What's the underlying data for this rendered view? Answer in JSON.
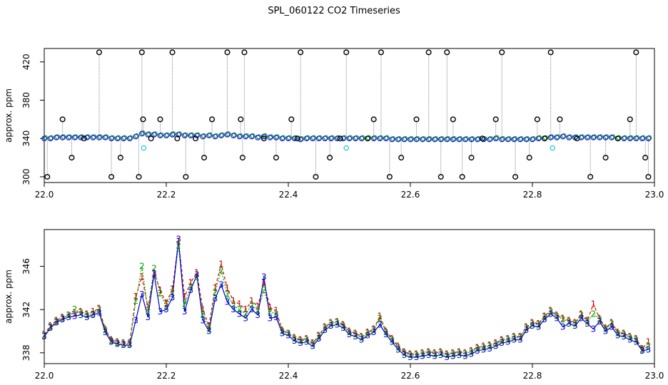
{
  "title": "SPL_060122  CO2 Timeseries",
  "chart_data": [
    {
      "type": "scatter",
      "ylabel": "approx. ppm",
      "xlim": [
        22.0,
        23.0
      ],
      "ylim": [
        294,
        434
      ],
      "xticks": [
        "22.0",
        "22.2",
        "22.4",
        "22.6",
        "22.8",
        "23.0"
      ],
      "yticks": [
        "300",
        "340",
        "380",
        "420"
      ],
      "main_series": {
        "x": [
          22.0,
          22.01,
          22.02,
          22.03,
          22.04,
          22.05,
          22.06,
          22.07,
          22.08,
          22.09,
          22.1,
          22.11,
          22.12,
          22.13,
          22.14,
          22.15,
          22.16,
          22.17,
          22.18,
          22.19,
          22.2,
          22.21,
          22.22,
          22.23,
          22.24,
          22.25,
          22.26,
          22.27,
          22.28,
          22.29,
          22.3,
          22.31,
          22.32,
          22.33,
          22.34,
          22.35,
          22.36,
          22.37,
          22.38,
          22.39,
          22.4,
          22.41,
          22.42,
          22.43,
          22.44,
          22.45,
          22.46,
          22.47,
          22.48,
          22.49,
          22.5,
          22.51,
          22.52,
          22.53,
          22.54,
          22.55,
          22.56,
          22.57,
          22.58,
          22.59,
          22.6,
          22.61,
          22.62,
          22.63,
          22.64,
          22.65,
          22.66,
          22.67,
          22.68,
          22.69,
          22.7,
          22.71,
          22.72,
          22.73,
          22.74,
          22.75,
          22.76,
          22.77,
          22.78,
          22.79,
          22.8,
          22.81,
          22.82,
          22.83,
          22.84,
          22.85,
          22.86,
          22.87,
          22.88,
          22.89,
          22.9,
          22.91,
          22.92,
          22.93,
          22.94,
          22.95,
          22.96,
          22.97,
          22.98,
          22.99
        ],
        "y": [
          340,
          340,
          341,
          341,
          341,
          341,
          341,
          341,
          341,
          341,
          341,
          340,
          340,
          340,
          340,
          342,
          345,
          344,
          344,
          343,
          343,
          344,
          344,
          343,
          343,
          343,
          342,
          343,
          342,
          343,
          344,
          343,
          342,
          342,
          342,
          341,
          342,
          341,
          341,
          340,
          340,
          340,
          339,
          340,
          340,
          340,
          340,
          340,
          340,
          340,
          340,
          340,
          340,
          340,
          340,
          340,
          340,
          339,
          339,
          339,
          339,
          339,
          339,
          339,
          339,
          339,
          339,
          339,
          339,
          339,
          339,
          339,
          339,
          339,
          340,
          339,
          339,
          339,
          339,
          339,
          339,
          340,
          340,
          341,
          341,
          342,
          341,
          341,
          341,
          341,
          341,
          341,
          341,
          341,
          340,
          340,
          340,
          340,
          340,
          340
        ]
      },
      "spikes": {
        "x": [
          22.005,
          22.03,
          22.045,
          22.065,
          22.09,
          22.11,
          22.125,
          22.155,
          22.16,
          22.162,
          22.175,
          22.19,
          22.21,
          22.218,
          22.232,
          22.248,
          22.262,
          22.275,
          22.3,
          22.322,
          22.325,
          22.328,
          22.36,
          22.38,
          22.405,
          22.415,
          22.42,
          22.445,
          22.468,
          22.485,
          22.495,
          22.53,
          22.54,
          22.552,
          22.566,
          22.585,
          22.61,
          22.63,
          22.65,
          22.66,
          22.67,
          22.685,
          22.7,
          22.718,
          22.74,
          22.75,
          22.772,
          22.795,
          22.808,
          22.82,
          22.83,
          22.845,
          22.873,
          22.895,
          22.92,
          22.94,
          22.96,
          22.97,
          22.985,
          22.99
        ],
        "y": [
          300,
          360,
          320,
          340,
          430,
          300,
          320,
          300,
          430,
          360,
          340,
          360,
          430,
          340,
          300,
          340,
          320,
          360,
          430,
          360,
          320,
          430,
          340,
          320,
          360,
          340,
          430,
          300,
          320,
          340,
          430,
          340,
          360,
          430,
          300,
          320,
          360,
          430,
          300,
          430,
          360,
          300,
          320,
          340,
          360,
          430,
          300,
          320,
          360,
          340,
          430,
          360,
          340,
          300,
          320,
          340,
          360,
          430,
          320,
          300
        ]
      },
      "cyan_points": {
        "x": [
          22.163,
          22.495,
          22.833
        ],
        "y": [
          330,
          330,
          330
        ]
      }
    },
    {
      "type": "line",
      "ylabel": "approx. ppm",
      "xlim": [
        22.0,
        23.0
      ],
      "ylim": [
        337.0,
        349.4
      ],
      "xticks": [
        "22.0",
        "22.2",
        "22.4",
        "22.6",
        "22.8",
        "23.0"
      ],
      "yticks": [
        "338",
        "342",
        "346"
      ],
      "series": [
        {
          "marker": "1",
          "color": "#dd0000",
          "x": [
            22.0,
            22.01,
            22.02,
            22.03,
            22.04,
            22.05,
            22.06,
            22.07,
            22.08,
            22.09,
            22.1,
            22.11,
            22.12,
            22.13,
            22.14,
            22.15,
            22.16,
            22.17,
            22.18,
            22.19,
            22.2,
            22.21,
            22.22,
            22.23,
            22.24,
            22.25,
            22.26,
            22.27,
            22.28,
            22.29,
            22.3,
            22.31,
            22.32,
            22.33,
            22.34,
            22.35,
            22.36,
            22.37,
            22.38,
            22.39,
            22.4,
            22.41,
            22.42,
            22.43,
            22.44,
            22.45,
            22.46,
            22.47,
            22.48,
            22.49,
            22.5,
            22.51,
            22.52,
            22.53,
            22.54,
            22.55,
            22.56,
            22.57,
            22.58,
            22.59,
            22.6,
            22.61,
            22.62,
            22.63,
            22.64,
            22.65,
            22.66,
            22.67,
            22.68,
            22.69,
            22.7,
            22.71,
            22.72,
            22.73,
            22.74,
            22.75,
            22.76,
            22.77,
            22.78,
            22.79,
            22.8,
            22.81,
            22.82,
            22.83,
            22.84,
            22.85,
            22.86,
            22.87,
            22.88,
            22.89,
            22.9,
            22.91,
            22.92,
            22.93,
            22.94,
            22.95,
            22.96,
            22.97,
            22.98,
            22.99
          ],
          "y": [
            339.7,
            340.5,
            341.0,
            341.3,
            341.5,
            341.7,
            341.8,
            341.6,
            341.8,
            342.1,
            340.2,
            339.2,
            339.0,
            338.9,
            338.9,
            343.2,
            345.0,
            342.2,
            345.4,
            343.8,
            342.6,
            343.9,
            348.3,
            343.2,
            344.5,
            345.4,
            342.0,
            340.5,
            344.0,
            346.2,
            344.0,
            342.8,
            342.5,
            342.0,
            342.8,
            342.3,
            344.5,
            342.2,
            341.9,
            340.1,
            339.8,
            339.4,
            339.2,
            339.3,
            338.9,
            339.6,
            340.4,
            340.8,
            340.9,
            340.6,
            340.0,
            339.8,
            339.5,
            339.9,
            340.2,
            341.4,
            340.0,
            339.3,
            338.6,
            338.1,
            337.9,
            337.9,
            338.0,
            338.1,
            338.0,
            338.1,
            337.9,
            338.0,
            338.1,
            338.0,
            338.2,
            338.5,
            338.6,
            338.7,
            338.9,
            339.2,
            339.3,
            339.5,
            339.5,
            340.4,
            340.8,
            340.7,
            341.4,
            341.9,
            341.5,
            341.2,
            341.0,
            340.8,
            341.6,
            341.0,
            342.5,
            341.2,
            340.3,
            340.8,
            339.9,
            339.8,
            339.5,
            339.3,
            338.4,
            339.0
          ]
        },
        {
          "marker": "2",
          "color": "#00aa00",
          "x": [
            22.0,
            22.01,
            22.02,
            22.03,
            22.04,
            22.05,
            22.06,
            22.07,
            22.08,
            22.09,
            22.1,
            22.11,
            22.12,
            22.13,
            22.14,
            22.15,
            22.16,
            22.17,
            22.18,
            22.19,
            22.2,
            22.21,
            22.22,
            22.23,
            22.24,
            22.25,
            22.26,
            22.27,
            22.28,
            22.29,
            22.3,
            22.31,
            22.32,
            22.33,
            22.34,
            22.35,
            22.36,
            22.37,
            22.38,
            22.39,
            22.4,
            22.41,
            22.42,
            22.43,
            22.44,
            22.45,
            22.46,
            22.47,
            22.48,
            22.49,
            22.5,
            22.51,
            22.52,
            22.53,
            22.54,
            22.55,
            22.56,
            22.57,
            22.58,
            22.59,
            22.6,
            22.61,
            22.62,
            22.63,
            22.64,
            22.65,
            22.66,
            22.67,
            22.68,
            22.69,
            22.7,
            22.71,
            22.72,
            22.73,
            22.74,
            22.75,
            22.76,
            22.77,
            22.78,
            22.79,
            22.8,
            22.81,
            22.82,
            22.83,
            22.84,
            22.85,
            22.86,
            22.87,
            22.88,
            22.89,
            22.9,
            22.91,
            22.92,
            22.93,
            22.94,
            22.95,
            22.96,
            22.97,
            22.98,
            22.99
          ],
          "y": [
            339.6,
            340.4,
            340.9,
            341.2,
            341.5,
            342.0,
            341.7,
            341.5,
            341.6,
            342.0,
            340.1,
            339.1,
            338.9,
            338.8,
            338.8,
            342.8,
            346.0,
            341.9,
            345.8,
            343.5,
            342.3,
            343.6,
            347.9,
            342.5,
            344.1,
            345.0,
            341.6,
            340.2,
            343.6,
            345.6,
            343.4,
            342.4,
            342.0,
            341.6,
            342.4,
            341.9,
            343.8,
            341.8,
            341.6,
            340.0,
            339.8,
            339.3,
            339.1,
            339.2,
            338.8,
            339.5,
            340.3,
            340.7,
            340.8,
            340.5,
            339.9,
            339.7,
            339.4,
            339.8,
            340.1,
            341.2,
            339.9,
            339.2,
            338.5,
            338.0,
            337.8,
            337.8,
            337.9,
            338.0,
            337.9,
            338.0,
            337.8,
            337.9,
            338.0,
            337.9,
            338.1,
            338.4,
            338.5,
            338.6,
            338.8,
            339.1,
            339.2,
            339.4,
            339.4,
            340.3,
            340.7,
            340.6,
            341.3,
            341.8,
            341.4,
            341.1,
            340.9,
            340.7,
            341.5,
            340.9,
            341.6,
            341.1,
            340.2,
            340.7,
            339.8,
            339.7,
            339.4,
            339.2,
            338.3,
            338.6
          ]
        },
        {
          "marker": "3",
          "color": "#0000cc",
          "x": [
            22.0,
            22.01,
            22.02,
            22.03,
            22.04,
            22.05,
            22.06,
            22.07,
            22.08,
            22.09,
            22.1,
            22.11,
            22.12,
            22.13,
            22.14,
            22.15,
            22.16,
            22.17,
            22.18,
            22.19,
            22.2,
            22.21,
            22.22,
            22.23,
            22.24,
            22.25,
            22.26,
            22.27,
            22.28,
            22.29,
            22.3,
            22.31,
            22.32,
            22.33,
            22.34,
            22.35,
            22.36,
            22.37,
            22.38,
            22.39,
            22.4,
            22.41,
            22.42,
            22.43,
            22.44,
            22.45,
            22.46,
            22.47,
            22.48,
            22.49,
            22.5,
            22.51,
            22.52,
            22.53,
            22.54,
            22.55,
            22.56,
            22.57,
            22.58,
            22.59,
            22.6,
            22.61,
            22.62,
            22.63,
            22.64,
            22.65,
            22.66,
            22.67,
            22.68,
            22.69,
            22.7,
            22.71,
            22.72,
            22.73,
            22.74,
            22.75,
            22.76,
            22.77,
            22.78,
            22.79,
            22.8,
            22.81,
            22.82,
            22.83,
            22.84,
            22.85,
            22.86,
            22.87,
            22.88,
            22.89,
            22.9,
            22.91,
            22.92,
            22.93,
            22.94,
            22.95,
            22.96,
            22.97,
            22.98,
            22.99
          ],
          "y": [
            339.5,
            340.3,
            340.8,
            341.1,
            341.3,
            341.4,
            341.5,
            341.3,
            341.5,
            341.7,
            339.9,
            339.0,
            338.8,
            338.7,
            338.7,
            341.0,
            343.4,
            341.3,
            345.3,
            341.8,
            342.0,
            343.1,
            348.5,
            341.8,
            343.8,
            345.2,
            341.0,
            340.0,
            343.0,
            344.3,
            342.7,
            342.0,
            341.6,
            341.2,
            342.0,
            341.5,
            345.0,
            341.2,
            341.3,
            339.8,
            339.6,
            339.1,
            338.9,
            339.0,
            338.6,
            339.3,
            340.1,
            340.5,
            340.6,
            340.3,
            339.7,
            339.5,
            339.2,
            339.6,
            339.9,
            340.6,
            339.7,
            339.0,
            338.3,
            337.8,
            337.6,
            337.6,
            337.7,
            337.8,
            337.7,
            337.8,
            337.6,
            337.7,
            337.8,
            337.7,
            337.9,
            338.2,
            338.3,
            338.4,
            338.6,
            338.9,
            339.0,
            339.2,
            339.2,
            340.1,
            340.5,
            340.4,
            341.1,
            341.6,
            341.2,
            340.4,
            340.7,
            340.5,
            341.2,
            340.7,
            340.2,
            340.9,
            340.0,
            340.4,
            339.6,
            339.5,
            339.2,
            339.0,
            338.2,
            338.3
          ]
        }
      ]
    }
  ]
}
